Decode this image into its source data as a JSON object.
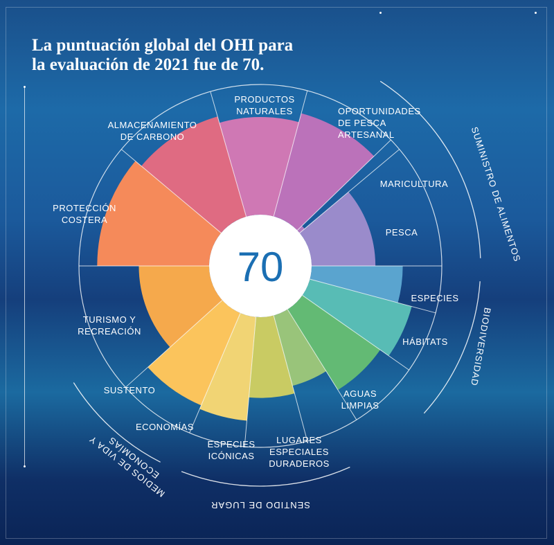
{
  "title": "La puntuación global del OHI para\nla evaluación de 2021 fue de 70.",
  "colors": {
    "background": "#1a4f8a",
    "center": "#ffffff",
    "score": "#1b6fb3"
  },
  "chart_data": {
    "type": "polar-bar",
    "center_score": "70",
    "max": 100,
    "goals": [
      {
        "label": "PESCA",
        "value": 49,
        "color": "#9a8bcb"
      },
      {
        "label": "MARICULTURA",
        "value": 5,
        "color": "#b27ac0"
      },
      {
        "label": "OPORTUNIDADES DE PESCA ARTESANAL",
        "value": 82,
        "color": "#bb72ba"
      },
      {
        "label": "PRODUCTOS NATURALES",
        "value": 75,
        "color": "#cf78b4"
      },
      {
        "label": "ALMACENAMIENTO DE CARBONO",
        "value": 80,
        "color": "#df6b82"
      },
      {
        "label": "PROTECCIÓN COSTERA",
        "value": 86,
        "color": "#f58a5a"
      },
      {
        "label": "TURISMO Y RECREACIÓN",
        "value": 54,
        "color": "#f5a94c"
      },
      {
        "label": "SUSTENTO",
        "value": 77,
        "color": "#fbc45c"
      },
      {
        "label": "ECONOMÍAS",
        "value": 80,
        "color": "#f1d474"
      },
      {
        "label": "ESPECIES ICÓNICAS",
        "value": 62,
        "color": "#c9cb63"
      },
      {
        "label": "LUGARES ESPECIALES DURADEROS",
        "value": 56,
        "color": "#99c47a"
      },
      {
        "label": "AGUAS LIMPIAS",
        "value": 73,
        "color": "#63ba74"
      },
      {
        "label": "HÁBITATS",
        "value": 81,
        "color": "#58bcb5"
      },
      {
        "label": "ESPECIES",
        "value": 70,
        "color": "#5aa4cf"
      }
    ],
    "groups": [
      "SUMINISTRO DE ALIMENTOS",
      "BIODIVERSIDAD",
      "SENTIDO DE LUGAR",
      "MEDIOS DE VIDA Y ECONOMÍAS"
    ]
  }
}
